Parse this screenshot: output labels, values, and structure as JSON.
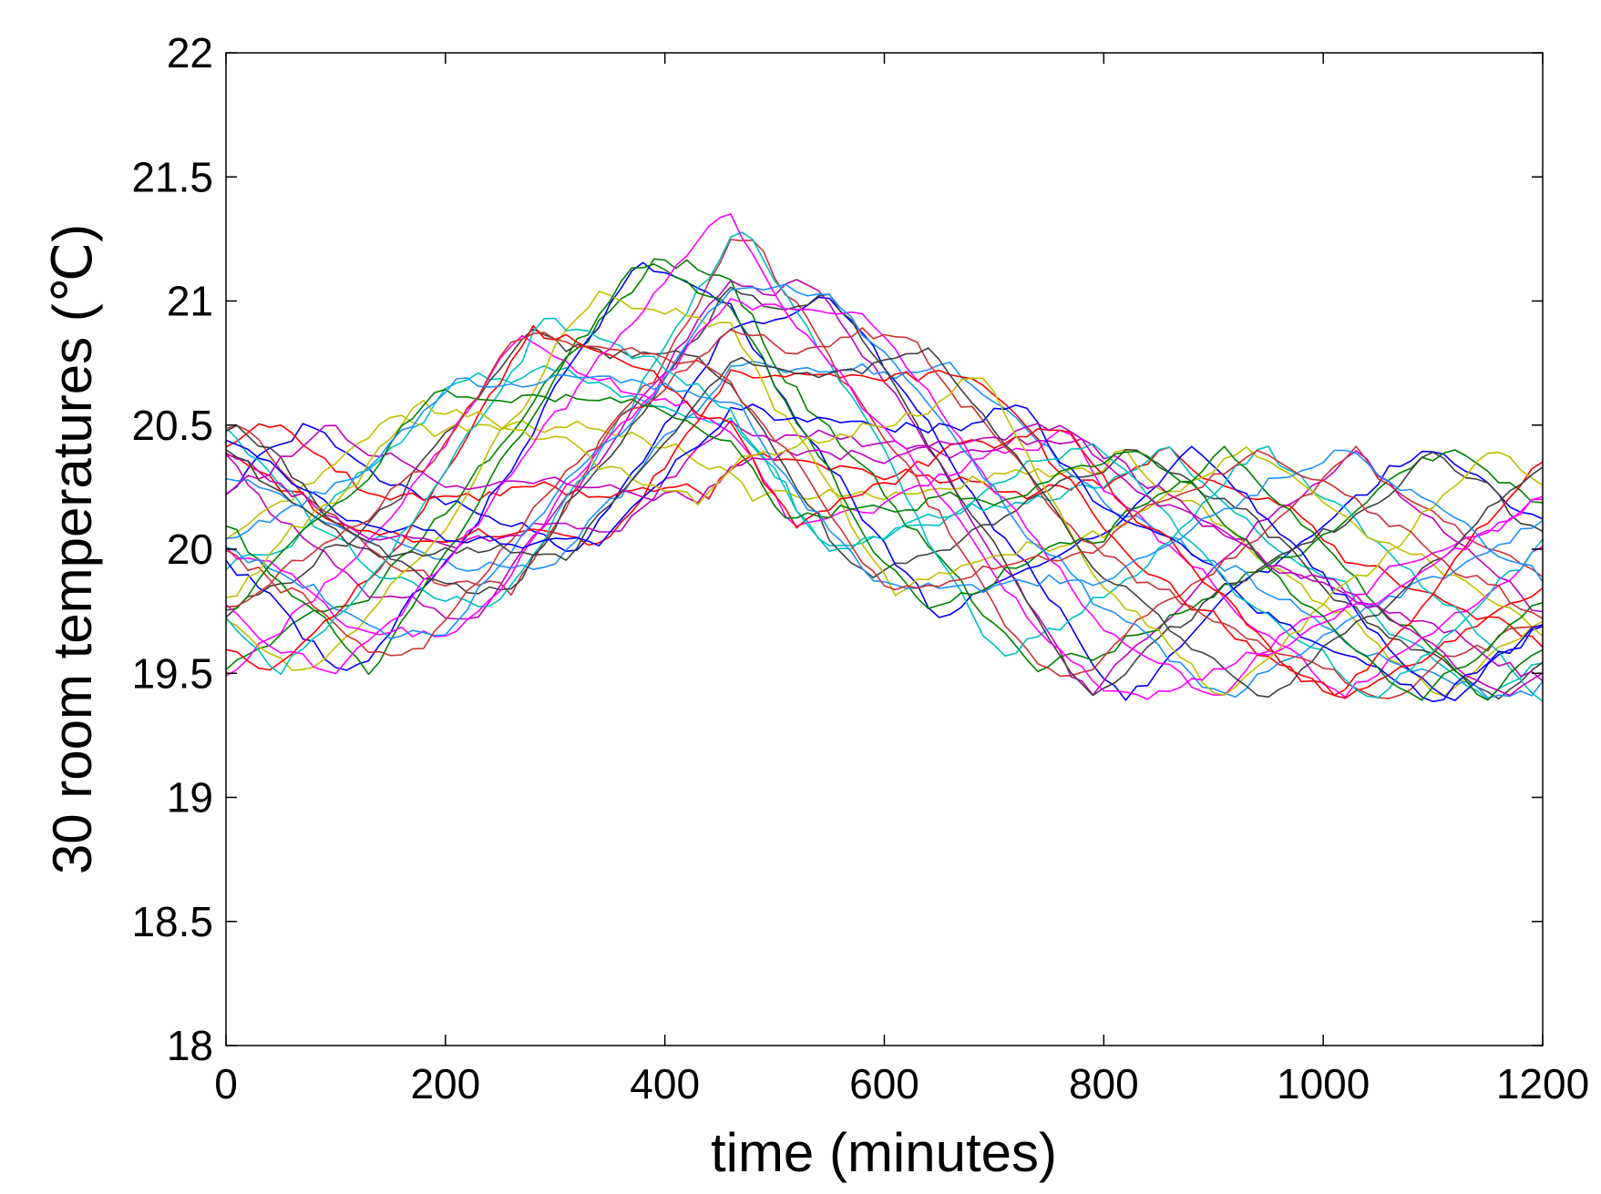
{
  "chart_data": {
    "type": "line",
    "title": "",
    "xlabel": "time (minutes)",
    "ylabel": "30 room temperatures (℃)",
    "xlim": [
      0,
      1200
    ],
    "ylim": [
      18,
      22
    ],
    "xticks": [
      0,
      200,
      400,
      600,
      800,
      1000,
      1200
    ],
    "xtick_labels": [
      "0",
      "200",
      "400",
      "600",
      "800",
      "1000",
      "1200"
    ],
    "yticks": [
      18,
      18.5,
      19,
      19.5,
      20,
      20.5,
      21,
      21.5,
      22
    ],
    "ytick_labels": [
      "18",
      "18.5",
      "19",
      "19.5",
      "20",
      "20.5",
      "21",
      "21.5",
      "22"
    ],
    "grid": false,
    "legend": "none",
    "series_count": 30,
    "sample_step_minutes": 10,
    "envelope": {
      "x": [
        0,
        130,
        200,
        300,
        460,
        500,
        600,
        700,
        800,
        850,
        1200
      ],
      "lower": [
        19.5,
        19.5,
        19.65,
        19.95,
        20.25,
        20.15,
        19.85,
        19.6,
        19.4,
        19.4,
        19.4
      ],
      "upper": [
        20.5,
        20.5,
        20.65,
        20.95,
        21.35,
        21.15,
        20.9,
        20.65,
        20.4,
        20.4,
        20.4
      ]
    },
    "series_colors": [
      "#0000ff",
      "#ff0000",
      "#00bfbf",
      "#bf00bf",
      "#bfbf00",
      "#404040",
      "#008000",
      "#ff00ff",
      "#1e90ff",
      "#cc3333"
    ]
  }
}
